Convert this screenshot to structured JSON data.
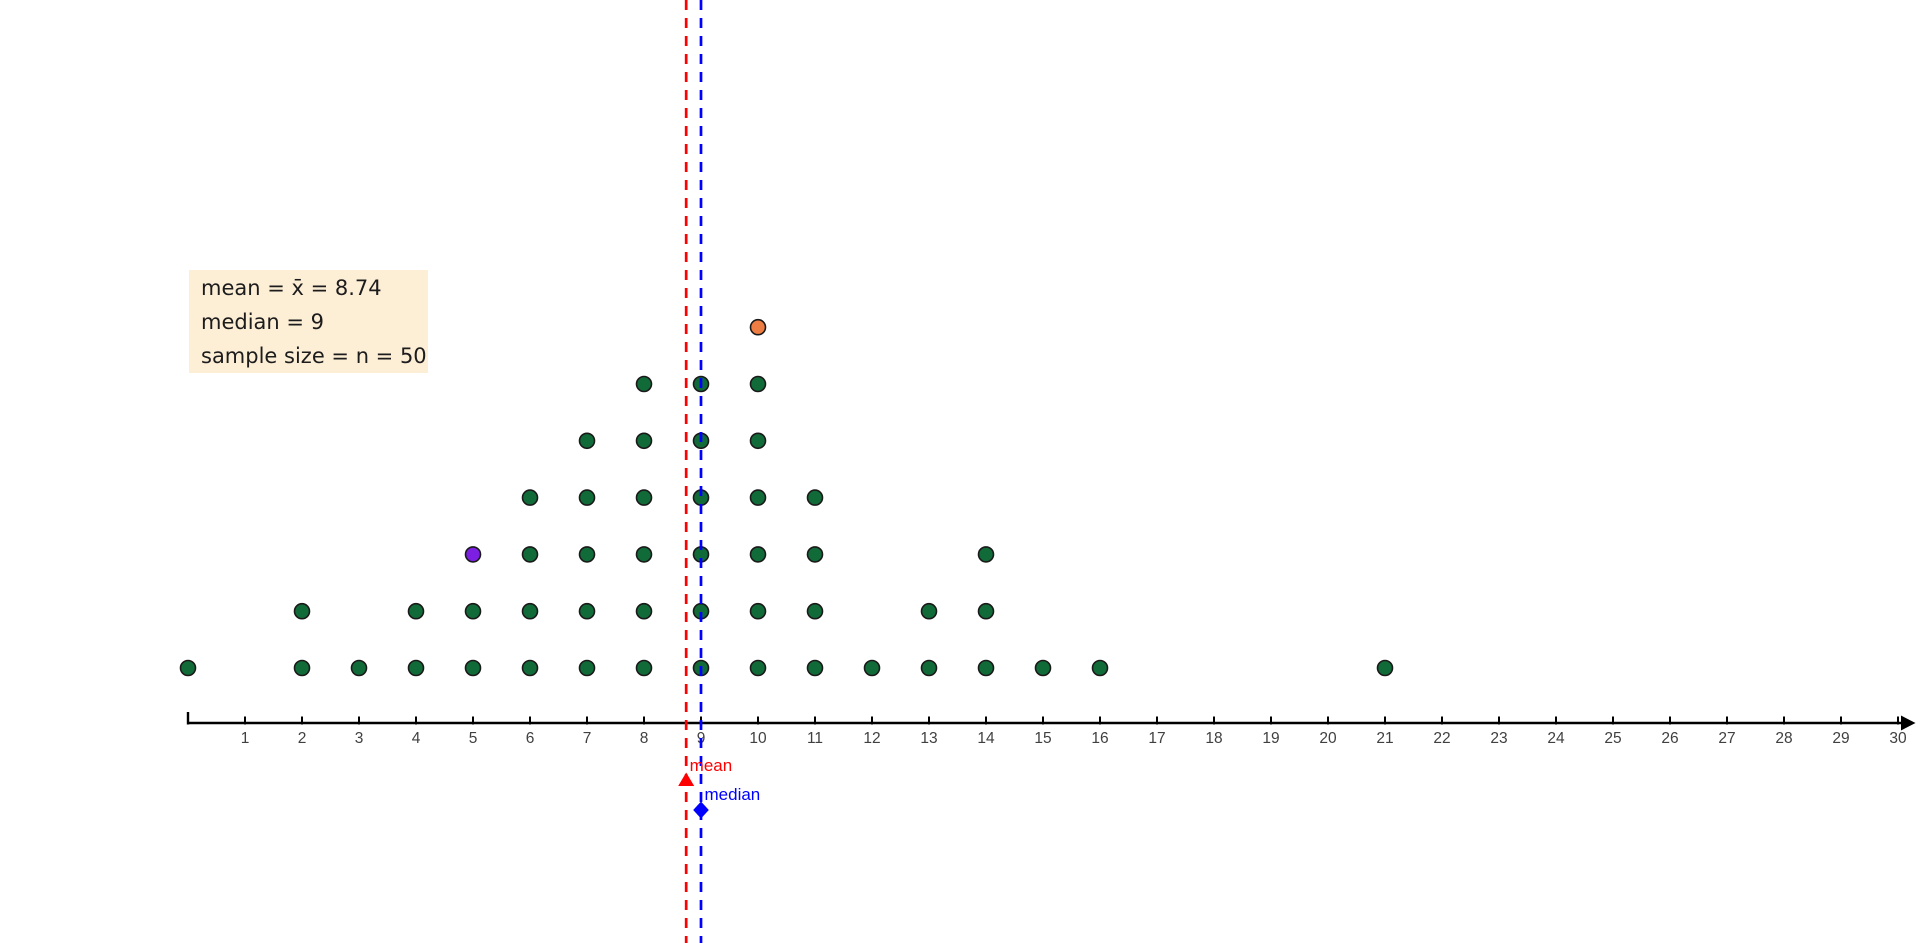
{
  "info_box": {
    "bg_color": "#fdeed6",
    "lines": [
      "mean = x̄ = 8.74",
      "median = 9",
      "sample size = n = 50"
    ]
  },
  "chart_data": {
    "type": "dotplot",
    "title": "",
    "xlabel": "",
    "ylabel": "",
    "points": [
      {
        "value": 0,
        "count": 1
      },
      {
        "value": 2,
        "count": 2
      },
      {
        "value": 3,
        "count": 1
      },
      {
        "value": 4,
        "count": 2
      },
      {
        "value": 5,
        "count": 3
      },
      {
        "value": 6,
        "count": 4
      },
      {
        "value": 7,
        "count": 5
      },
      {
        "value": 8,
        "count": 6
      },
      {
        "value": 9,
        "count": 6
      },
      {
        "value": 10,
        "count": 7
      },
      {
        "value": 11,
        "count": 4
      },
      {
        "value": 12,
        "count": 1
      },
      {
        "value": 13,
        "count": 2
      },
      {
        "value": 14,
        "count": 3
      },
      {
        "value": 15,
        "count": 1
      },
      {
        "value": 16,
        "count": 1
      },
      {
        "value": 21,
        "count": 1
      }
    ],
    "special_points": [
      {
        "value": 5,
        "stack_level": 3,
        "color": "#7d1fe2",
        "name": "purple-point"
      },
      {
        "value": 10,
        "stack_level": 7,
        "color": "#ee7d44",
        "name": "orange-point"
      }
    ],
    "statistics": {
      "mean": 8.74,
      "median": 9,
      "sample_size": 50
    },
    "axis": {
      "min": 0,
      "max": 30,
      "tick_step": 1,
      "first_label": 1,
      "grid": false
    },
    "mean_line": {
      "value": 8.74,
      "color": "#ff0000",
      "label": "mean",
      "marker": "triangle"
    },
    "median_line": {
      "value": 9,
      "color": "#0000ff",
      "label": "median",
      "marker": "diamond"
    },
    "colors": {
      "dot_fill": "#116b38",
      "dot_stroke": "#1a1a1a",
      "axis": "#000000",
      "tick_label": "#404040"
    }
  }
}
